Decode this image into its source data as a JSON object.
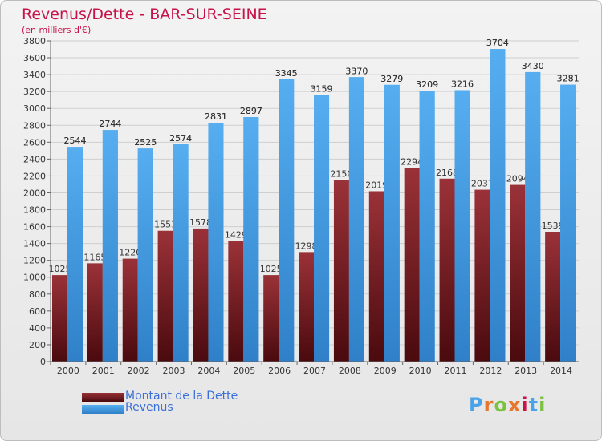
{
  "header": {
    "title": "Revenus/Dette - BAR-SUR-SEINE",
    "subtitle": "(en milliers d'€)"
  },
  "colors": {
    "dette": "#7a1f24",
    "revenus": "#4aa3e8",
    "title": "#c8124a",
    "legend_text": "#3a6fd8"
  },
  "legend": {
    "dette_label": "Montant de la Dette",
    "revenus_label": "Revenus"
  },
  "logo": {
    "text": "Proxiti"
  },
  "chart_data": {
    "type": "bar",
    "title": "Revenus/Dette - BAR-SUR-SEINE",
    "subtitle": "(en milliers d'€)",
    "categories": [
      "2000",
      "2001",
      "2002",
      "2003",
      "2004",
      "2005",
      "2006",
      "2007",
      "2008",
      "2009",
      "2010",
      "2011",
      "2012",
      "2013",
      "2014"
    ],
    "series": [
      {
        "name": "Montant de la Dette",
        "values": [
          1025,
          1165,
          1220,
          1551,
          1578,
          1429,
          1025,
          1298,
          2150,
          2019,
          2294,
          2168,
          2037,
          2094,
          1539
        ],
        "labels": [
          "1025",
          "1165",
          "1220",
          "1551",
          "1578",
          "1429",
          "1025",
          "1298",
          "2150",
          "2019",
          "2294",
          "2168",
          "2037",
          "2094",
          "1539"
        ]
      },
      {
        "name": "Revenus",
        "values": [
          2544,
          2744,
          2525,
          2574,
          2831,
          2897,
          3345,
          3159,
          3370,
          3279,
          3209,
          3216,
          3704,
          3430,
          3281
        ],
        "labels": [
          "2544",
          "2744",
          "2525",
          "2574",
          "2831",
          "2897",
          "3345",
          "3159",
          "3370",
          "3279",
          "3209",
          "3216",
          "3704",
          "3430",
          "3281"
        ]
      }
    ],
    "ylim": [
      0,
      3800
    ],
    "yticks": [
      "0",
      "200",
      "400",
      "600",
      "800",
      "1000",
      "1200",
      "1400",
      "1600",
      "1800",
      "2000",
      "2200",
      "2400",
      "2600",
      "2800",
      "3000",
      "3200",
      "3400",
      "3600",
      "3800"
    ],
    "grid": true,
    "legend_position": "bottom-left"
  }
}
